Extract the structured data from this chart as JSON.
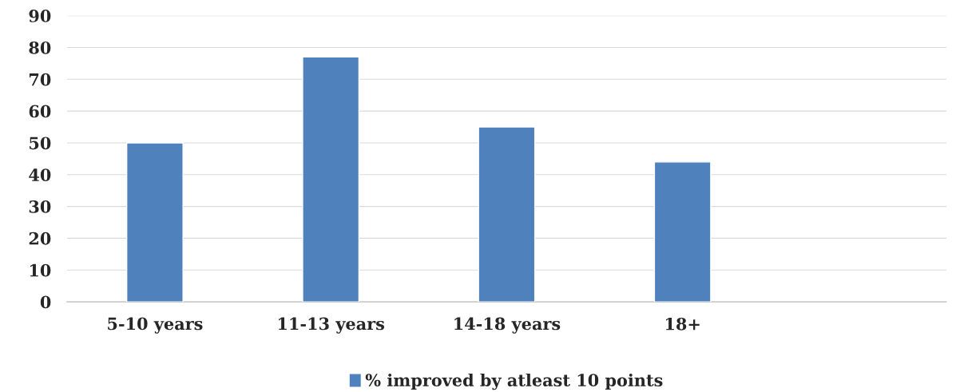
{
  "chart_data": {
    "type": "bar",
    "categories": [
      "5-10 years",
      "11-13 years",
      "14-18 years",
      "18+",
      null
    ],
    "series": [
      {
        "name": "% improved by atleast 10 points",
        "color": "#4f81bd",
        "values": [
          50,
          77,
          55,
          44,
          null
        ]
      }
    ],
    "ylim": [
      0,
      90
    ],
    "yticks": [
      0,
      10,
      20,
      30,
      40,
      50,
      60,
      70,
      80,
      90
    ],
    "grid": "y",
    "legend": "bottom"
  }
}
